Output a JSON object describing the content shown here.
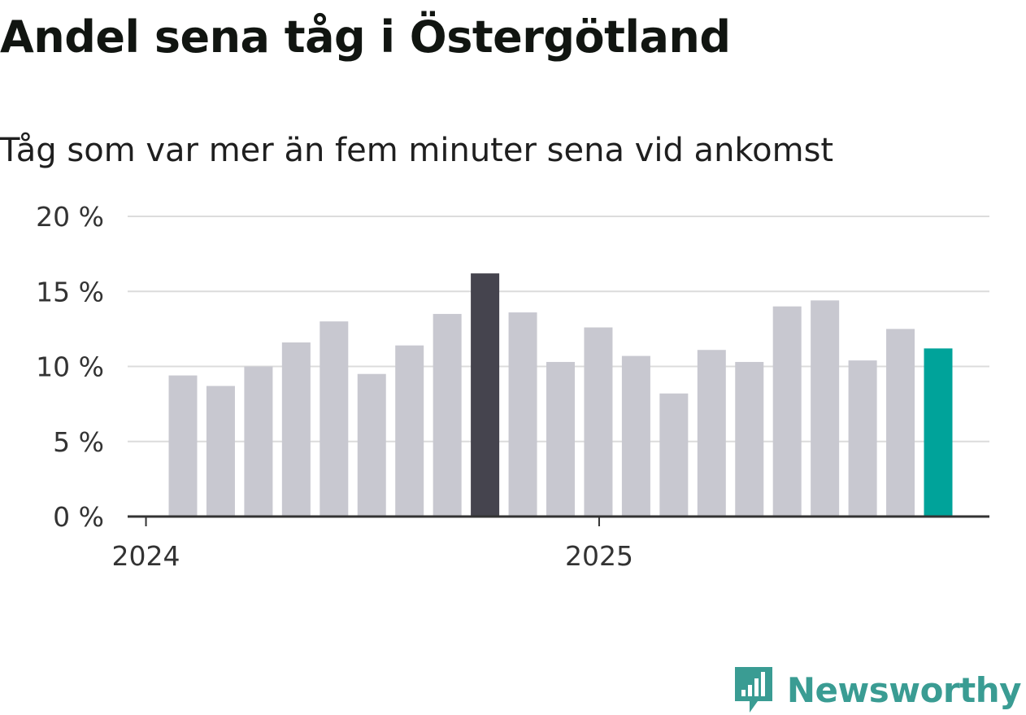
{
  "title": "Andel sena tåg i Östergötland",
  "subtitle": "Tåg som var mer än fem minuter sena vid ankomst",
  "logo_text": "Newsworthy",
  "colors": {
    "default_bar": "#c8c8d0",
    "highlight_max": "#45444e",
    "highlight_latest": "#00a39a",
    "grid": "#dcdcdc",
    "axis": "#333333",
    "logo": "#3a9c93"
  },
  "chart_data": {
    "type": "bar",
    "y_tick_labels": [
      "0 %",
      "5 %",
      "10 %",
      "15 %",
      "20 %"
    ],
    "y_ticks": [
      0,
      5,
      10,
      15,
      20
    ],
    "ylim": [
      0,
      20
    ],
    "x_tick_labels": [
      "2024",
      "2025"
    ],
    "x_tick_positions": [
      0,
      12
    ],
    "grid": true,
    "values": [
      9.4,
      8.7,
      10.0,
      11.6,
      13.0,
      9.5,
      11.4,
      13.5,
      16.2,
      13.6,
      10.3,
      12.6,
      10.7,
      8.2,
      11.1,
      10.3,
      14.0,
      14.4,
      10.4,
      12.5,
      11.2
    ],
    "highlight": {
      "max_index": 8,
      "latest_index": 20
    }
  }
}
